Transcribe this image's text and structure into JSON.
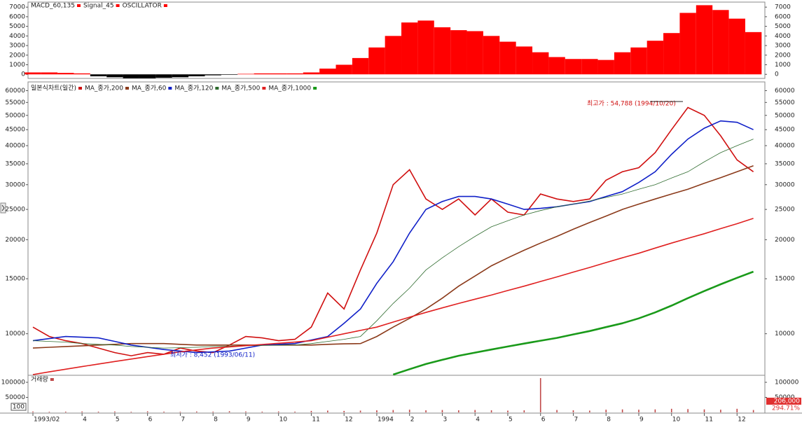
{
  "chart_data": [
    {
      "type": "bar",
      "legend": [
        "MACD_60,135",
        "Signal_45"
      ],
      "series": [
        {
          "name": "OSCILLATOR",
          "color": "#ff0000",
          "negative_color": "#000000",
          "values": [
            200,
            200,
            150,
            100,
            -200,
            -300,
            -400,
            -400,
            -350,
            -300,
            -200,
            -100,
            -50,
            50,
            100,
            100,
            100,
            200,
            600,
            1000,
            1700,
            2800,
            4000,
            5400,
            5600,
            4900,
            4600,
            4500,
            4000,
            3400,
            2900,
            2300,
            1800,
            1600,
            1600,
            1500,
            2300,
            2800,
            3500,
            4300,
            6400,
            7200,
            6700,
            5800,
            4400
          ]
        }
      ],
      "ylim": [
        -350,
        7450
      ],
      "yticks": [
        0,
        1000,
        2000,
        3000,
        4000,
        5000,
        6000,
        7000
      ]
    },
    {
      "type": "line",
      "log_scale": true,
      "categories": [
        "1993/02",
        null,
        null,
        "4",
        null,
        "5",
        null,
        "6",
        null,
        "7",
        null,
        "8",
        null,
        "9",
        null,
        "10",
        null,
        "11",
        null,
        "12",
        null,
        "1994",
        null,
        "2",
        null,
        "3",
        null,
        "4",
        null,
        "5",
        null,
        "6",
        null,
        "7",
        null,
        "8",
        null,
        "9",
        null,
        "10",
        null,
        "11",
        null,
        "12",
        null
      ],
      "series": [
        {
          "name": "일본식차트(일간)",
          "color": "#d01010",
          "values": [
            10500,
            9800,
            9500,
            9300,
            9000,
            8700,
            8500,
            8700,
            8600,
            9000,
            8800,
            8700,
            9200,
            9800,
            9700,
            9500,
            9600,
            10500,
            13500,
            12000,
            16000,
            21000,
            30000,
            33500,
            27000,
            25000,
            27000,
            24000,
            27000,
            24500,
            24000,
            28000,
            27000,
            26500,
            27000,
            31000,
            33000,
            34000,
            38000,
            45000,
            53000,
            50000,
            43000,
            36000,
            33000
          ]
        },
        {
          "name": "MA_종가,200",
          "color": "#8b3a1a",
          "values": [
            9000,
            9050,
            9100,
            9150,
            9200,
            9250,
            9300,
            9300,
            9300,
            9250,
            9200,
            9200,
            9200,
            9200,
            9200,
            9200,
            9200,
            9200,
            9250,
            9280,
            9300,
            9800,
            10500,
            11200,
            12000,
            13000,
            14200,
            15300,
            16500,
            17500,
            18500,
            19500,
            20500,
            21600,
            22700,
            23800,
            25000,
            26000,
            27000,
            28000,
            29000,
            30300,
            31600,
            33000,
            34500
          ]
        },
        {
          "name": "MA_종가,60",
          "color": "#1020c8",
          "values": [
            9500,
            9650,
            9800,
            9750,
            9700,
            9450,
            9200,
            9050,
            8900,
            8800,
            8700,
            8750,
            8800,
            9000,
            9200,
            9250,
            9300,
            9550,
            9800,
            10800,
            12000,
            14500,
            17000,
            21000,
            25000,
            26500,
            27500,
            27500,
            27000,
            26000,
            25000,
            25200,
            25500,
            26000,
            26500,
            27500,
            28500,
            30500,
            33000,
            37500,
            42000,
            45500,
            48000,
            47500,
            45000
          ]
        },
        {
          "name": "MA_종가,120",
          "color": "#2e6b2e",
          "values": [
            9500,
            9450,
            9400,
            9300,
            9250,
            9200,
            9100,
            9050,
            9000,
            9020,
            9050,
            9100,
            9120,
            9150,
            9170,
            9190,
            9200,
            9300,
            9450,
            9600,
            9800,
            11000,
            12500,
            14000,
            16000,
            17500,
            19000,
            20500,
            22000,
            23000,
            24000,
            24800,
            25500,
            26000,
            26600,
            27300,
            28000,
            29000,
            30000,
            31500,
            33000,
            35500,
            38000,
            40000,
            42000
          ]
        },
        {
          "name": "MA_종가,500",
          "color": "#e02020",
          "values": [
            7400,
            7550,
            7700,
            7850,
            8000,
            8150,
            8300,
            8450,
            8600,
            8750,
            8880,
            9000,
            9080,
            9160,
            9240,
            9320,
            9400,
            9500,
            9750,
            10000,
            10250,
            10500,
            10900,
            11300,
            11700,
            12100,
            12500,
            12900,
            13300,
            13750,
            14200,
            14700,
            15200,
            15750,
            16300,
            16900,
            17500,
            18100,
            18800,
            19500,
            20200,
            20900,
            21700,
            22500,
            23400
          ]
        },
        {
          "name": "MA_종가,1000",
          "color": "#1a9a1a",
          "values": [
            null,
            null,
            null,
            null,
            null,
            null,
            null,
            null,
            null,
            null,
            null,
            null,
            null,
            null,
            null,
            null,
            null,
            null,
            null,
            null,
            null,
            null,
            7400,
            7700,
            8000,
            8250,
            8500,
            8700,
            8900,
            9100,
            9300,
            9500,
            9700,
            9950,
            10200,
            10500,
            10800,
            11200,
            11700,
            12300,
            13000,
            13700,
            14400,
            15100,
            15800
          ]
        }
      ],
      "ylim": [
        7400,
        63000
      ],
      "yticks": [
        10000,
        15000,
        20000,
        25000,
        30000,
        35000,
        40000,
        45000,
        50000,
        55000,
        60000
      ],
      "annotations": [
        "최고가 : 54,788 (1994/10/20)",
        "최저가 : 8,452 (1993/06/11)"
      ]
    },
    {
      "type": "bar",
      "series": [
        {
          "name": "거래량",
          "color": "#c04848",
          "values": [
            3000,
            2000,
            2500,
            3000,
            2500,
            3000,
            2000,
            3500,
            2500,
            2000,
            3000,
            2500,
            4000,
            3000,
            2500,
            3000,
            2500,
            5000,
            6000,
            5000,
            6000,
            7000,
            8000,
            9000,
            7000,
            8000,
            7000,
            8000,
            7000,
            6000,
            7000,
            114000,
            8000,
            7000,
            6000,
            9000,
            10000,
            9000,
            10000,
            12000,
            11000,
            10000,
            9000,
            12000,
            8000
          ]
        }
      ],
      "ylim": [
        0,
        121000
      ],
      "yticks": [
        50000,
        100000
      ],
      "scale_label": "100",
      "current_labels": [
        "206,000",
        "294.71%"
      ]
    }
  ]
}
